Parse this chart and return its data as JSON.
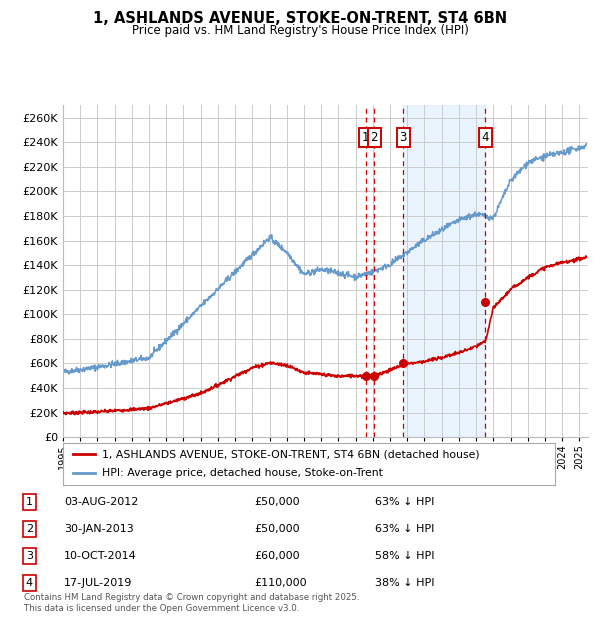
{
  "title": "1, ASHLANDS AVENUE, STOKE-ON-TRENT, ST4 6BN",
  "subtitle": "Price paid vs. HM Land Registry's House Price Index (HPI)",
  "ylim": [
    0,
    270000
  ],
  "yticks": [
    0,
    20000,
    40000,
    60000,
    80000,
    100000,
    120000,
    140000,
    160000,
    180000,
    200000,
    220000,
    240000,
    260000
  ],
  "xlim_start": 1995.0,
  "xlim_end": 2025.5,
  "xtick_years": [
    1995,
    1996,
    1997,
    1998,
    1999,
    2000,
    2001,
    2002,
    2003,
    2004,
    2005,
    2006,
    2007,
    2008,
    2009,
    2010,
    2011,
    2012,
    2013,
    2014,
    2015,
    2016,
    2017,
    2018,
    2019,
    2020,
    2021,
    2022,
    2023,
    2024,
    2025
  ],
  "red_color": "#cc0000",
  "blue_color": "#6699cc",
  "background_color": "#ffffff",
  "grid_color": "#cccccc",
  "vline_color": "#cc0000",
  "shade_color": "#ddeeff",
  "shade_start": 2014.77,
  "shade_end": 2019.54,
  "transactions": [
    {
      "num": 1,
      "date_x": 2012.58,
      "price": 50000,
      "label": "1"
    },
    {
      "num": 2,
      "date_x": 2013.08,
      "price": 50000,
      "label": "2"
    },
    {
      "num": 3,
      "date_x": 2014.77,
      "price": 60000,
      "label": "3"
    },
    {
      "num": 4,
      "date_x": 2019.54,
      "price": 110000,
      "label": "4"
    }
  ],
  "table_rows": [
    {
      "num": 1,
      "date": "03-AUG-2012",
      "price": "£50,000",
      "pct": "63% ↓ HPI"
    },
    {
      "num": 2,
      "date": "30-JAN-2013",
      "price": "£50,000",
      "pct": "63% ↓ HPI"
    },
    {
      "num": 3,
      "date": "10-OCT-2014",
      "price": "£60,000",
      "pct": "58% ↓ HPI"
    },
    {
      "num": 4,
      "date": "17-JUL-2019",
      "price": "£110,000",
      "pct": "38% ↓ HPI"
    }
  ],
  "legend_line1": "1, ASHLANDS AVENUE, STOKE-ON-TRENT, ST4 6BN (detached house)",
  "legend_line2": "HPI: Average price, detached house, Stoke-on-Trent",
  "footnote": "Contains HM Land Registry data © Crown copyright and database right 2025.\nThis data is licensed under the Open Government Licence v3.0."
}
